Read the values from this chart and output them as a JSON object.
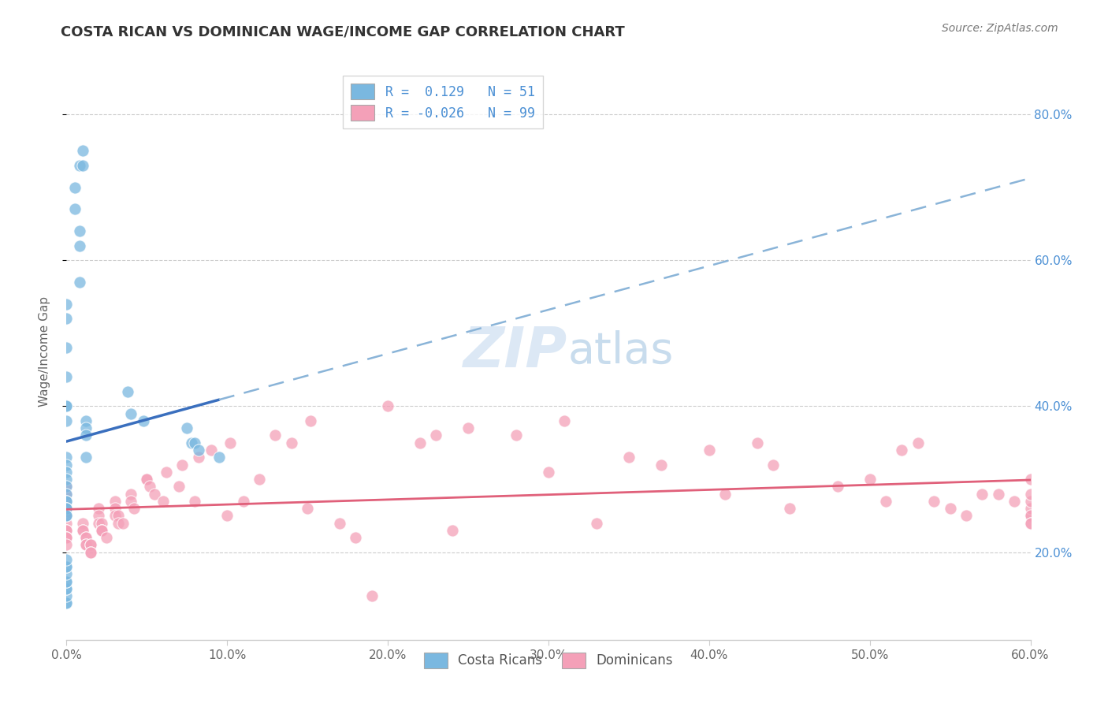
{
  "title": "COSTA RICAN VS DOMINICAN WAGE/INCOME GAP CORRELATION CHART",
  "source": "Source: ZipAtlas.com",
  "ylabel": "Wage/Income Gap",
  "y_ticks": [
    0.2,
    0.4,
    0.6,
    0.8
  ],
  "y_tick_labels": [
    "20.0%",
    "40.0%",
    "60.0%",
    "80.0%"
  ],
  "xlim": [
    0.0,
    0.6
  ],
  "ylim": [
    0.08,
    0.87
  ],
  "legend_r1": "0.129",
  "legend_n1": "51",
  "legend_r2": "-0.026",
  "legend_n2": "99",
  "cr_color": "#7ab8e0",
  "dom_color": "#f4a0b8",
  "cr_line_color": "#3a6fbe",
  "dom_line_color": "#e0607a",
  "background_color": "#ffffff",
  "costa_ricans_x": [
    0.005,
    0.005,
    0.008,
    0.01,
    0.01,
    0.008,
    0.008,
    0.008,
    0.0,
    0.0,
    0.0,
    0.0,
    0.0,
    0.0,
    0.0,
    0.012,
    0.012,
    0.012,
    0.012,
    0.0,
    0.0,
    0.0,
    0.0,
    0.0,
    0.0,
    0.0,
    0.0,
    0.0,
    0.0,
    0.0,
    0.0,
    0.0,
    0.038,
    0.04,
    0.048,
    0.075,
    0.078,
    0.08,
    0.082,
    0.095,
    0.0,
    0.0,
    0.0,
    0.0,
    0.0,
    0.0,
    0.0,
    0.0,
    0.0,
    0.0,
    0.0
  ],
  "costa_ricans_y": [
    0.67,
    0.7,
    0.73,
    0.73,
    0.75,
    0.64,
    0.62,
    0.57,
    0.54,
    0.52,
    0.48,
    0.44,
    0.4,
    0.4,
    0.38,
    0.38,
    0.37,
    0.36,
    0.33,
    0.33,
    0.32,
    0.31,
    0.3,
    0.29,
    0.28,
    0.27,
    0.27,
    0.26,
    0.26,
    0.26,
    0.25,
    0.25,
    0.42,
    0.39,
    0.38,
    0.37,
    0.35,
    0.35,
    0.34,
    0.33,
    0.13,
    0.13,
    0.14,
    0.15,
    0.15,
    0.16,
    0.16,
    0.17,
    0.18,
    0.18,
    0.19
  ],
  "dominicans_x": [
    0.0,
    0.0,
    0.0,
    0.0,
    0.0,
    0.0,
    0.0,
    0.0,
    0.0,
    0.0,
    0.0,
    0.0,
    0.0,
    0.0,
    0.01,
    0.01,
    0.01,
    0.012,
    0.012,
    0.012,
    0.012,
    0.015,
    0.015,
    0.015,
    0.015,
    0.02,
    0.02,
    0.02,
    0.022,
    0.022,
    0.022,
    0.022,
    0.025,
    0.03,
    0.03,
    0.03,
    0.032,
    0.032,
    0.035,
    0.04,
    0.04,
    0.042,
    0.05,
    0.05,
    0.052,
    0.055,
    0.06,
    0.062,
    0.07,
    0.072,
    0.08,
    0.082,
    0.09,
    0.1,
    0.102,
    0.11,
    0.12,
    0.13,
    0.14,
    0.15,
    0.152,
    0.17,
    0.18,
    0.19,
    0.2,
    0.22,
    0.23,
    0.24,
    0.25,
    0.28,
    0.3,
    0.31,
    0.33,
    0.35,
    0.37,
    0.4,
    0.41,
    0.43,
    0.44,
    0.45,
    0.48,
    0.5,
    0.51,
    0.52,
    0.53,
    0.54,
    0.55,
    0.56,
    0.57,
    0.58,
    0.59,
    0.6,
    0.6,
    0.6,
    0.6,
    0.6,
    0.6,
    0.6,
    0.6
  ],
  "dominicans_y": [
    0.29,
    0.28,
    0.27,
    0.26,
    0.25,
    0.25,
    0.24,
    0.23,
    0.23,
    0.23,
    0.22,
    0.22,
    0.22,
    0.21,
    0.24,
    0.23,
    0.23,
    0.22,
    0.22,
    0.21,
    0.21,
    0.21,
    0.21,
    0.2,
    0.2,
    0.26,
    0.25,
    0.24,
    0.24,
    0.23,
    0.23,
    0.23,
    0.22,
    0.27,
    0.26,
    0.25,
    0.25,
    0.24,
    0.24,
    0.28,
    0.27,
    0.26,
    0.3,
    0.3,
    0.29,
    0.28,
    0.27,
    0.31,
    0.29,
    0.32,
    0.27,
    0.33,
    0.34,
    0.25,
    0.35,
    0.27,
    0.3,
    0.36,
    0.35,
    0.26,
    0.38,
    0.24,
    0.22,
    0.14,
    0.4,
    0.35,
    0.36,
    0.23,
    0.37,
    0.36,
    0.31,
    0.38,
    0.24,
    0.33,
    0.32,
    0.34,
    0.28,
    0.35,
    0.32,
    0.26,
    0.29,
    0.3,
    0.27,
    0.34,
    0.35,
    0.27,
    0.26,
    0.25,
    0.28,
    0.28,
    0.27,
    0.25,
    0.26,
    0.3,
    0.27,
    0.25,
    0.24,
    0.24,
    0.28
  ]
}
